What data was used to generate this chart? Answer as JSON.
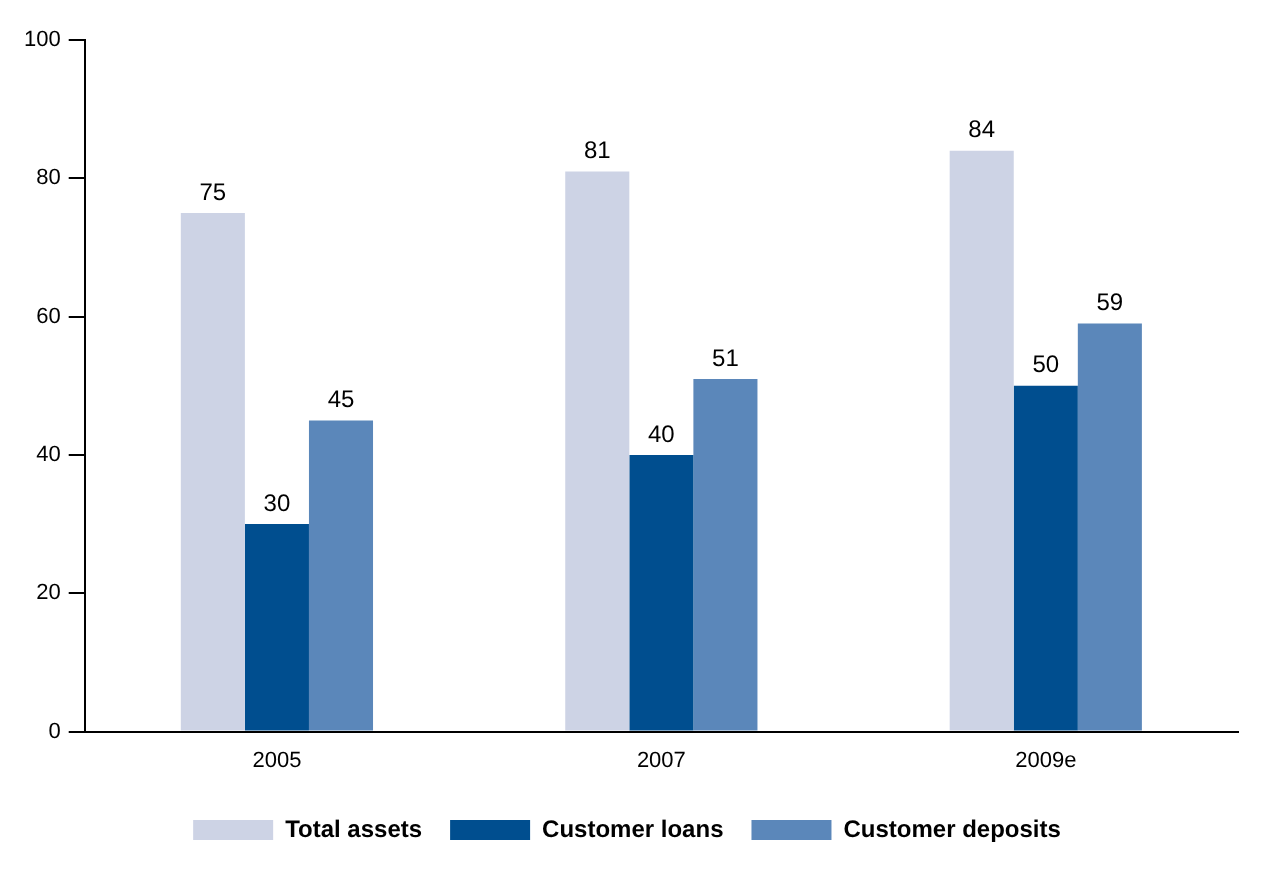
{
  "chart_data": {
    "type": "bar",
    "categories": [
      "2005",
      "2007",
      "2009e"
    ],
    "series": [
      {
        "name": "Total assets",
        "color": "#cdd3e5",
        "values": [
          75,
          81,
          84
        ]
      },
      {
        "name": "Customer loans",
        "color": "#004e8f",
        "values": [
          30,
          40,
          50
        ]
      },
      {
        "name": "Customer deposits",
        "color": "#5b87ba",
        "values": [
          45,
          51,
          59
        ]
      }
    ],
    "ylim": [
      0,
      100
    ],
    "yticks": [
      0,
      20,
      40,
      60,
      80,
      100
    ],
    "grid": false,
    "legend": "bottom",
    "data_labels": true
  }
}
